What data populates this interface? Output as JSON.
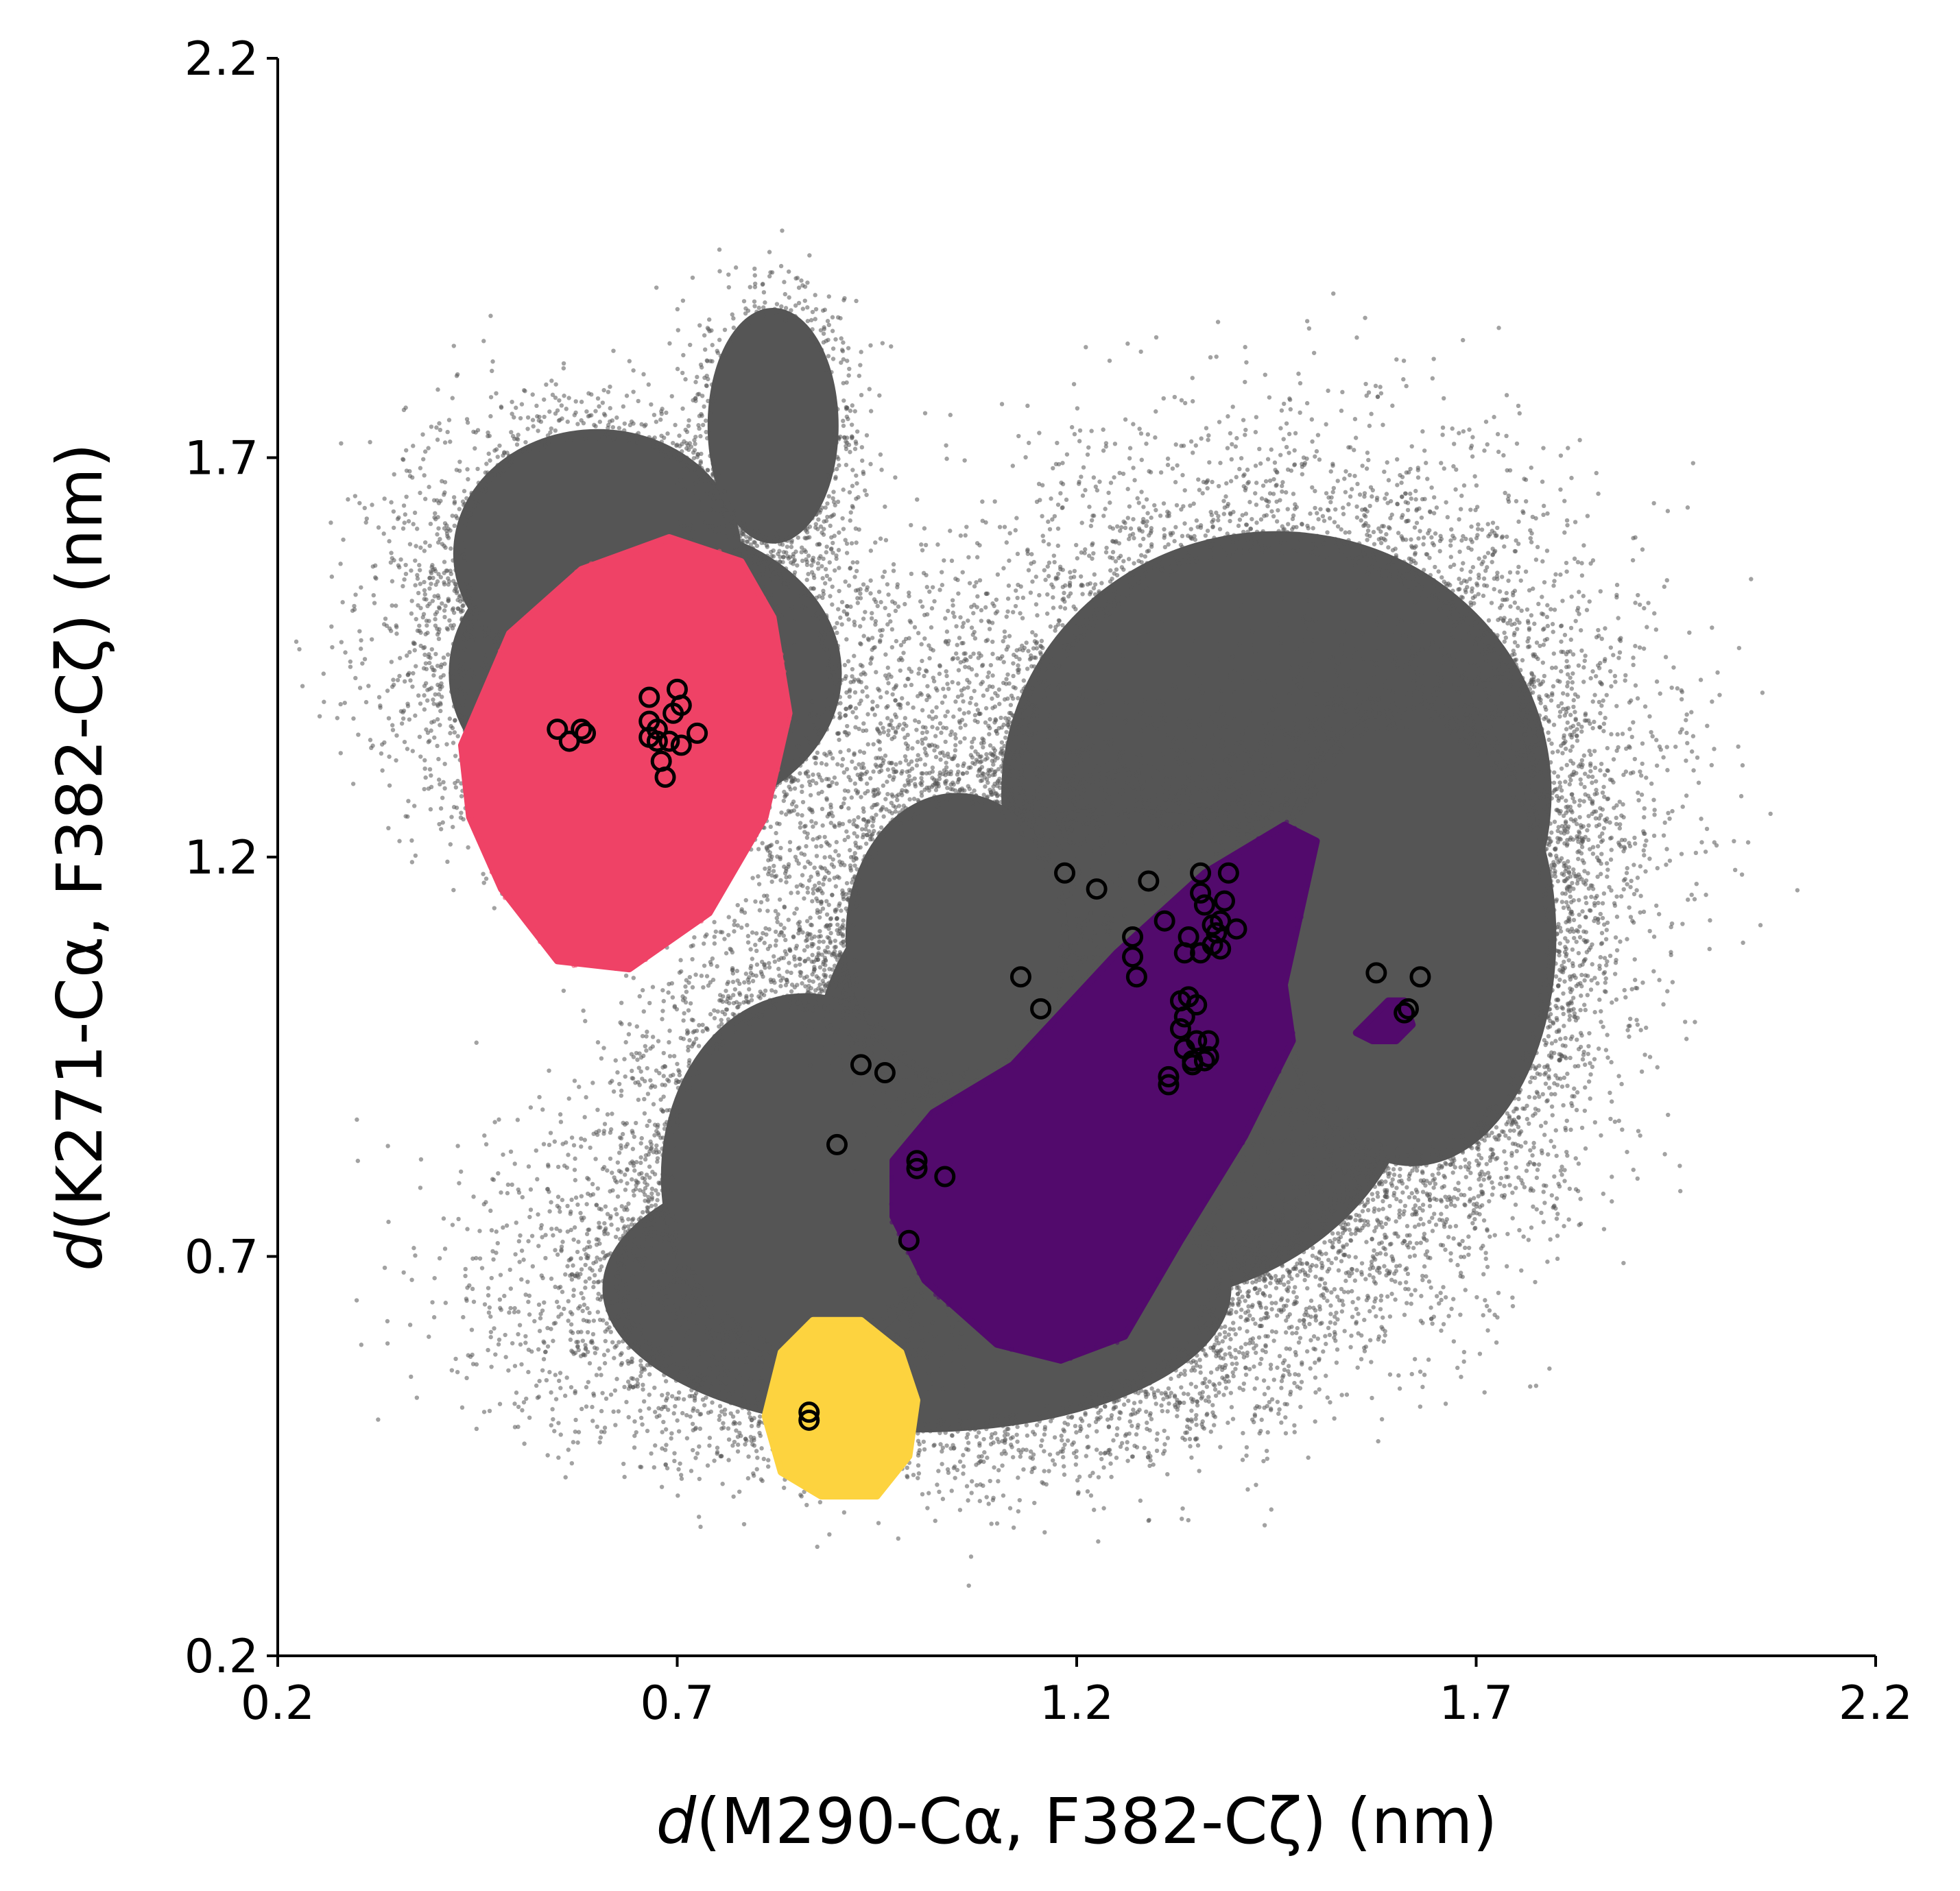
{
  "chart_data": {
    "type": "scatter",
    "title": "",
    "xlabel": {
      "italic": "d",
      "rest": "(M290-Cα, F382-Cζ) (nm)"
    },
    "ylabel": {
      "italic": "d",
      "rest": "(K271-Cα, F382-Cζ) (nm)"
    },
    "xlim": [
      0.2,
      2.2
    ],
    "ylim": [
      0.2,
      2.2
    ],
    "xticks": [
      "0.2",
      "0.7",
      "1.2",
      "1.7",
      "2.2"
    ],
    "yticks": [
      "0.2",
      "0.7",
      "1.2",
      "1.7",
      "2.2"
    ],
    "grid": false,
    "legend": "none",
    "colors": {
      "background_points": "#555555",
      "red_state": "#ef4266",
      "purple_state": "#520a6c",
      "yellow_state": "#fdd33f",
      "markers": "#000000"
    },
    "background_regions": [
      {
        "center": [
          0.66,
          1.43
        ],
        "radii": [
          0.3,
          0.23
        ]
      },
      {
        "center": [
          0.6,
          1.58
        ],
        "radii": [
          0.22,
          0.19
        ]
      },
      {
        "center": [
          0.82,
          1.74
        ],
        "radii": [
          0.1,
          0.18
        ]
      },
      {
        "center": [
          1.45,
          1.28
        ],
        "radii": [
          0.42,
          0.4
        ]
      },
      {
        "center": [
          1.25,
          0.95
        ],
        "radii": [
          0.46,
          0.38
        ]
      },
      {
        "center": [
          1.0,
          0.66
        ],
        "radii": [
          0.48,
          0.22
        ]
      },
      {
        "center": [
          0.86,
          0.8
        ],
        "radii": [
          0.22,
          0.28
        ]
      },
      {
        "center": [
          1.62,
          1.1
        ],
        "radii": [
          0.22,
          0.35
        ]
      },
      {
        "center": [
          1.05,
          1.1
        ],
        "radii": [
          0.17,
          0.22
        ]
      }
    ],
    "state_regions": [
      {
        "name": "red",
        "color_key": "red_state",
        "polygon": [
          [
            0.43,
            1.34
          ],
          [
            0.49,
            1.48
          ],
          [
            0.58,
            1.56
          ],
          [
            0.69,
            1.6
          ],
          [
            0.78,
            1.57
          ],
          [
            0.82,
            1.5
          ],
          [
            0.84,
            1.38
          ],
          [
            0.81,
            1.25
          ],
          [
            0.74,
            1.13
          ],
          [
            0.64,
            1.06
          ],
          [
            0.55,
            1.07
          ],
          [
            0.48,
            1.16
          ],
          [
            0.44,
            1.25
          ]
        ]
      },
      {
        "name": "purple",
        "color_key": "purple_state",
        "polygon": [
          [
            0.97,
            0.82
          ],
          [
            1.02,
            0.88
          ],
          [
            1.12,
            0.94
          ],
          [
            1.25,
            1.08
          ],
          [
            1.36,
            1.18
          ],
          [
            1.46,
            1.24
          ],
          [
            1.5,
            1.22
          ],
          [
            1.48,
            1.13
          ],
          [
            1.46,
            1.04
          ],
          [
            1.47,
            0.97
          ],
          [
            1.41,
            0.85
          ],
          [
            1.33,
            0.72
          ],
          [
            1.26,
            0.6
          ],
          [
            1.18,
            0.57
          ],
          [
            1.1,
            0.59
          ],
          [
            1.01,
            0.67
          ],
          [
            0.97,
            0.75
          ]
        ]
      },
      {
        "name": "purple-small",
        "color_key": "purple_state",
        "polygon": [
          [
            1.55,
            0.98
          ],
          [
            1.59,
            1.02
          ],
          [
            1.61,
            1.02
          ],
          [
            1.62,
            0.99
          ],
          [
            1.6,
            0.97
          ],
          [
            1.57,
            0.97
          ]
        ]
      },
      {
        "name": "yellow",
        "color_key": "yellow_state",
        "polygon": [
          [
            0.81,
            0.5
          ],
          [
            0.83,
            0.58
          ],
          [
            0.87,
            0.62
          ],
          [
            0.93,
            0.62
          ],
          [
            0.98,
            0.58
          ],
          [
            1.0,
            0.52
          ],
          [
            0.99,
            0.45
          ],
          [
            0.95,
            0.4
          ],
          [
            0.88,
            0.4
          ],
          [
            0.83,
            0.43
          ]
        ]
      }
    ],
    "series": [
      {
        "marker": "open-circle",
        "points": [
          [
            0.55,
            1.36
          ],
          [
            0.565,
            1.345
          ],
          [
            0.585,
            1.355
          ],
          [
            0.58,
            1.36
          ],
          [
            0.665,
            1.4
          ],
          [
            0.665,
            1.37
          ],
          [
            0.665,
            1.35
          ],
          [
            0.675,
            1.36
          ],
          [
            0.675,
            1.345
          ],
          [
            0.68,
            1.32
          ],
          [
            0.685,
            1.3
          ],
          [
            0.69,
            1.345
          ],
          [
            0.695,
            1.38
          ],
          [
            0.7,
            1.41
          ],
          [
            0.705,
            1.39
          ],
          [
            0.705,
            1.34
          ],
          [
            0.725,
            1.355
          ],
          [
            0.865,
            0.505
          ],
          [
            0.865,
            0.495
          ],
          [
            0.9,
            0.84
          ],
          [
            0.93,
            0.94
          ],
          [
            0.96,
            0.93
          ],
          [
            0.99,
            0.72
          ],
          [
            1.0,
            0.82
          ],
          [
            1.0,
            0.81
          ],
          [
            1.035,
            0.8
          ],
          [
            1.13,
            1.05
          ],
          [
            1.155,
            1.01
          ],
          [
            1.185,
            1.18
          ],
          [
            1.225,
            1.16
          ],
          [
            1.27,
            1.1
          ],
          [
            1.27,
            1.075
          ],
          [
            1.275,
            1.05
          ],
          [
            1.29,
            1.17
          ],
          [
            1.31,
            1.12
          ],
          [
            1.315,
            0.925
          ],
          [
            1.315,
            0.915
          ],
          [
            1.33,
            1.02
          ],
          [
            1.33,
            0.985
          ],
          [
            1.335,
            1.0
          ],
          [
            1.335,
            0.96
          ],
          [
            1.335,
            1.08
          ],
          [
            1.34,
            1.1
          ],
          [
            1.34,
            1.025
          ],
          [
            1.345,
            0.945
          ],
          [
            1.345,
            0.94
          ],
          [
            1.35,
            1.015
          ],
          [
            1.35,
            0.97
          ],
          [
            1.355,
            1.18
          ],
          [
            1.355,
            1.155
          ],
          [
            1.355,
            1.08
          ],
          [
            1.36,
            1.14
          ],
          [
            1.36,
            0.945
          ],
          [
            1.365,
            0.97
          ],
          [
            1.365,
            0.95
          ],
          [
            1.37,
            1.115
          ],
          [
            1.37,
            1.09
          ],
          [
            1.375,
            1.105
          ],
          [
            1.38,
            1.085
          ],
          [
            1.38,
            1.12
          ],
          [
            1.385,
            1.145
          ],
          [
            1.39,
            1.18
          ],
          [
            1.4,
            1.11
          ],
          [
            1.575,
            1.055
          ],
          [
            1.61,
            1.005
          ],
          [
            1.615,
            1.01
          ],
          [
            1.63,
            1.05
          ]
        ]
      }
    ]
  }
}
